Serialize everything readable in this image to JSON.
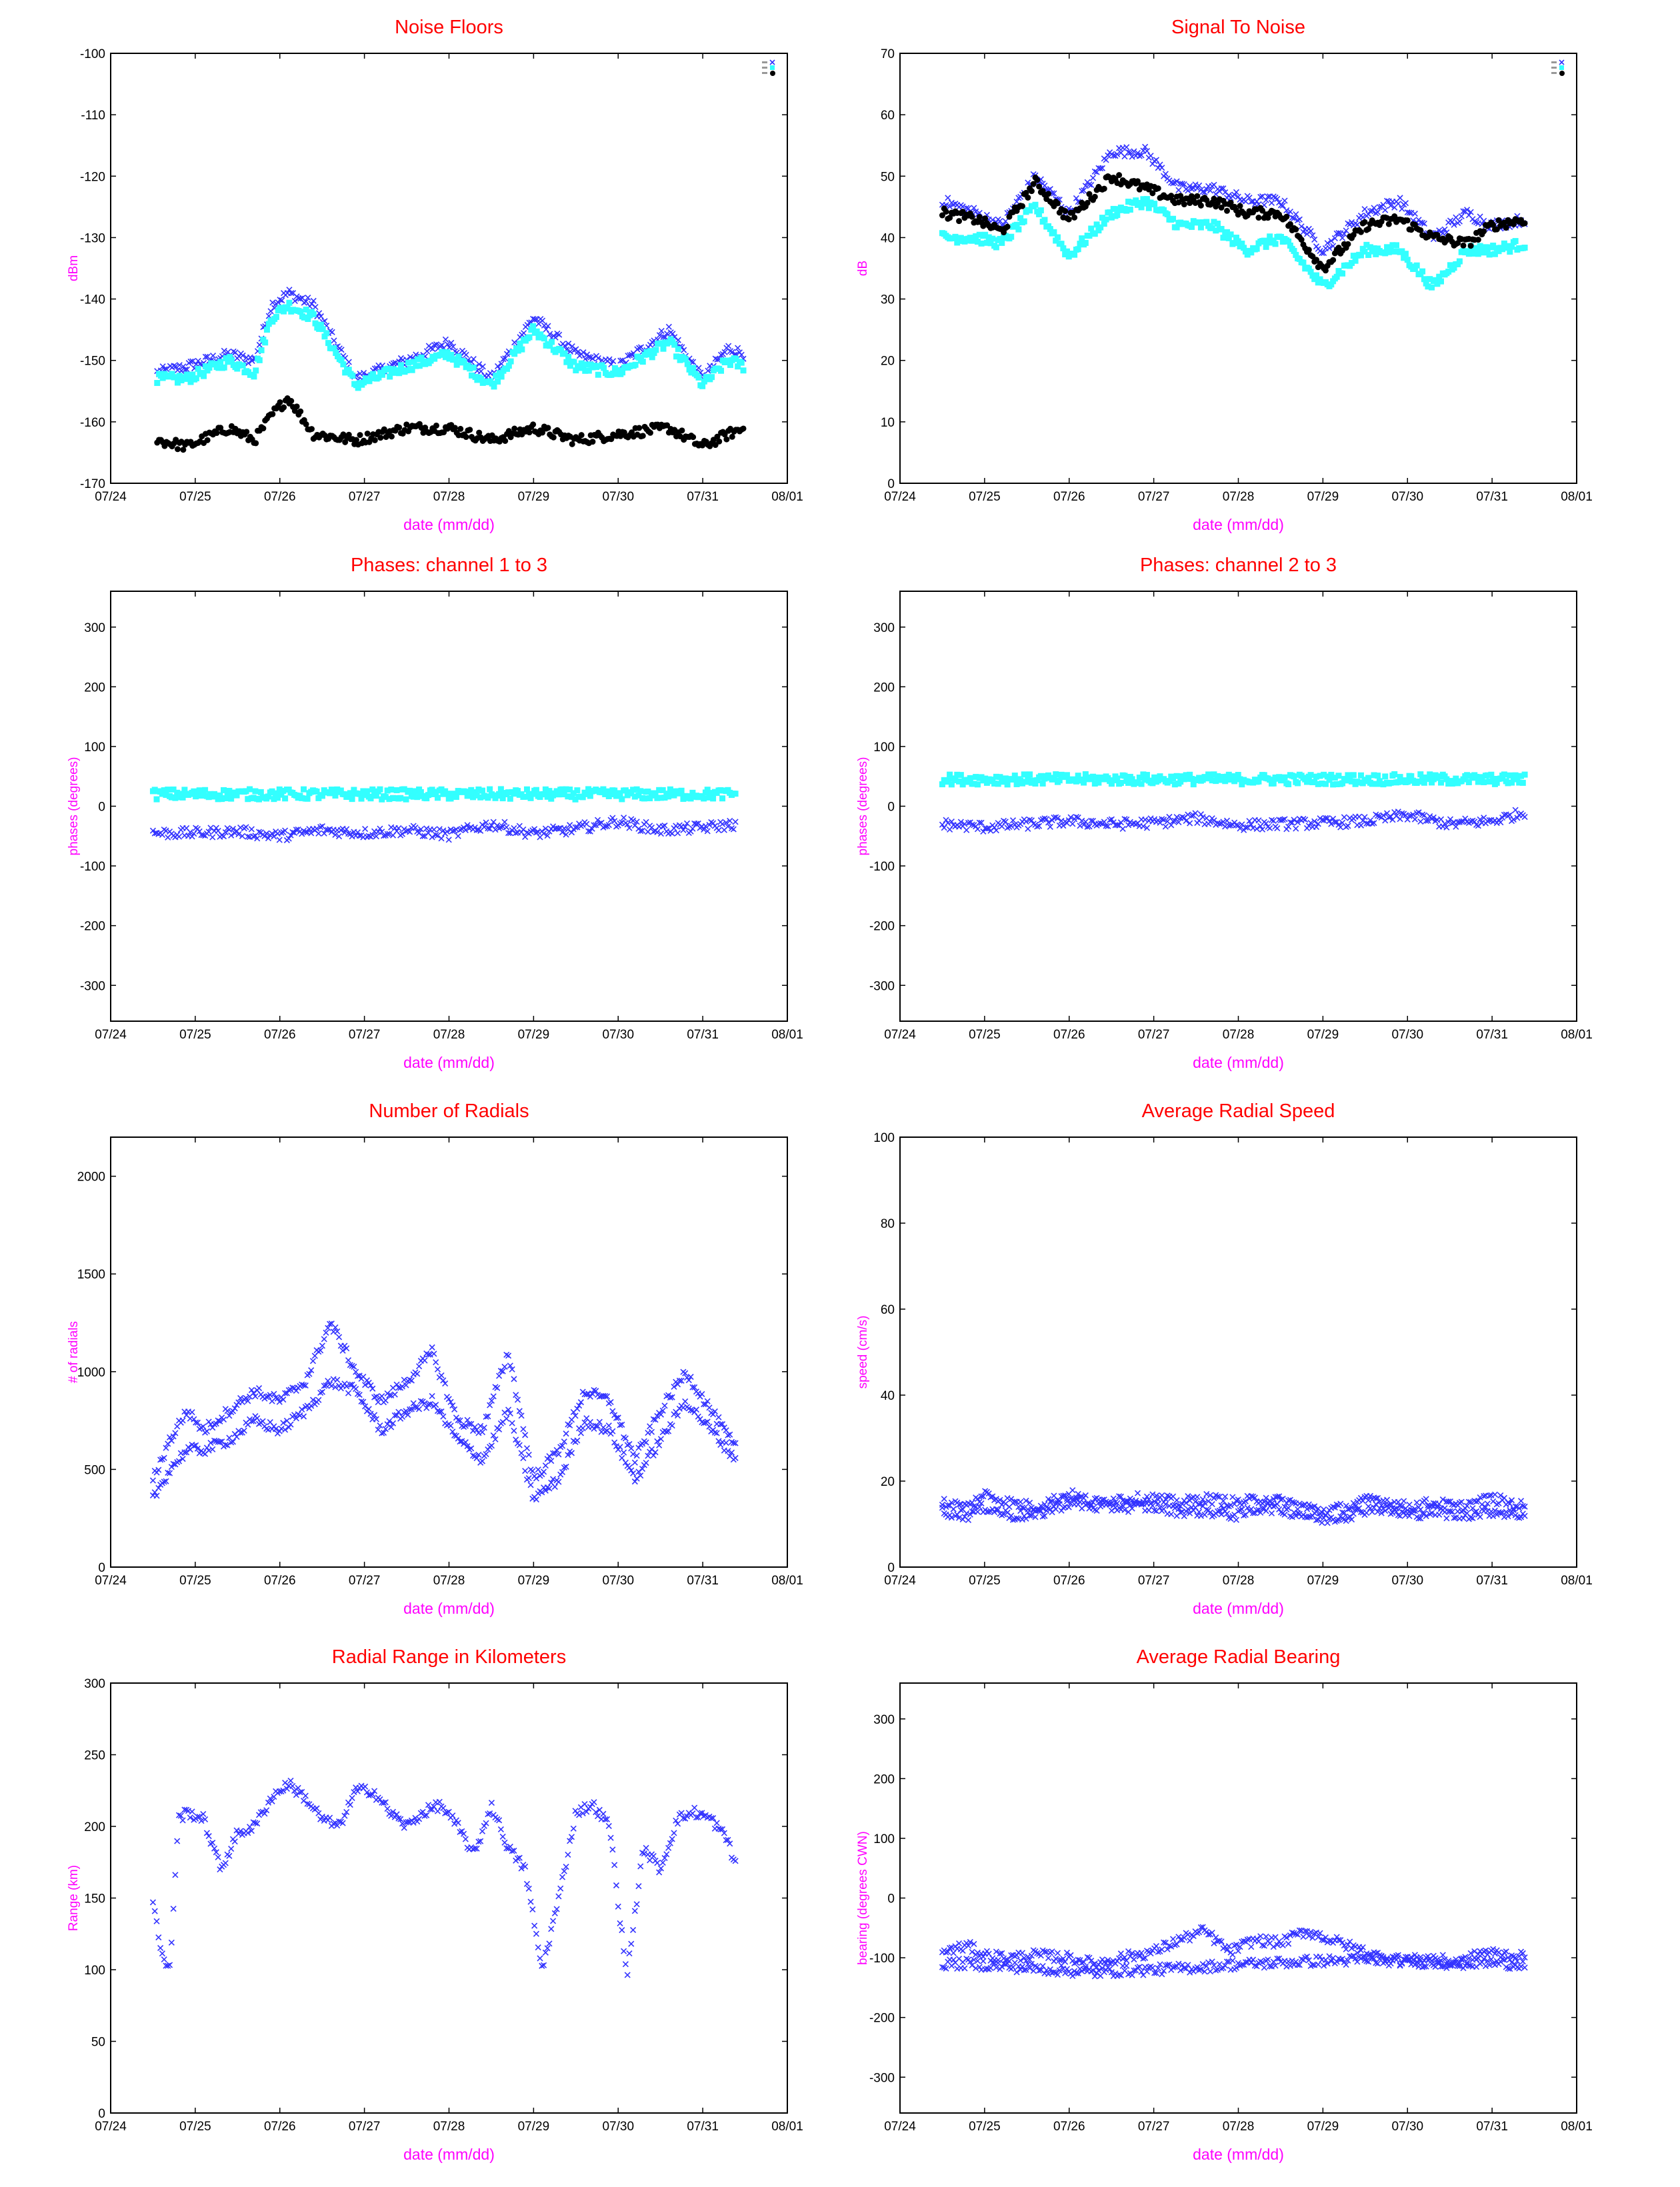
{
  "colors": {
    "title": "#ff0000",
    "axis_label": "#ff00ff",
    "blue": "#3333ff",
    "cyan": "#33ffff",
    "black": "#000000",
    "frame": "#000000"
  },
  "chart_data": [
    {
      "type": "scatter",
      "title": "Noise Floors",
      "xlabel": "date (mm/dd)",
      "ylabel": "dBm",
      "x_ticks": [
        "07/24",
        "07/25",
        "07/26",
        "07/27",
        "07/28",
        "07/29",
        "07/30",
        "07/31",
        "08/01"
      ],
      "xlim": [
        0,
        8
      ],
      "ylim": [
        -170,
        -100
      ],
      "y_ticks": [
        -100,
        -110,
        -120,
        -130,
        -140,
        -150,
        -160,
        -170
      ],
      "grid": false,
      "legend": "top-right",
      "legend_labels": [
        "",
        "",
        ""
      ],
      "series": [
        {
          "color": "#3333ff",
          "marker": "x",
          "x": [
            0.55,
            0.9,
            1.4,
            1.7,
            1.9,
            2.1,
            2.4,
            2.9,
            3.5,
            4.0,
            4.5,
            5.0,
            5.5,
            6.0,
            6.6,
            7.0,
            7.3,
            7.5
          ],
          "y": [
            -152,
            -151,
            -149,
            -150,
            -141,
            -139,
            -141,
            -153,
            -150,
            -147,
            -153,
            -143,
            -149,
            -151,
            -145,
            -153,
            -148,
            -149
          ]
        },
        {
          "color": "#33ffff",
          "marker": "s",
          "x": [
            0.55,
            0.9,
            1.4,
            1.7,
            1.9,
            2.1,
            2.4,
            2.9,
            3.5,
            4.0,
            4.5,
            5.0,
            5.5,
            6.0,
            6.6,
            7.0,
            7.3,
            7.5
          ],
          "y": [
            -153,
            -153,
            -150,
            -152,
            -143,
            -141,
            -143,
            -154,
            -151,
            -149,
            -154,
            -145,
            -151,
            -152,
            -147,
            -154,
            -150,
            -151
          ]
        },
        {
          "color": "#000000",
          "marker": "o",
          "x": [
            0.55,
            0.9,
            1.4,
            1.7,
            1.9,
            2.1,
            2.4,
            2.9,
            3.5,
            4.0,
            4.5,
            5.0,
            5.5,
            6.0,
            6.6,
            7.0,
            7.3,
            7.5
          ],
          "y": [
            -163,
            -164,
            -161,
            -163,
            -159,
            -156,
            -162,
            -163,
            -161,
            -161,
            -163,
            -161,
            -163,
            -162,
            -161,
            -164,
            -162,
            -161
          ]
        }
      ]
    },
    {
      "type": "scatter",
      "title": "Signal To Noise",
      "xlabel": "date (mm/dd)",
      "ylabel": "dB",
      "x_ticks": [
        "07/24",
        "07/25",
        "07/26",
        "07/27",
        "07/28",
        "07/29",
        "07/30",
        "07/31",
        "08/01"
      ],
      "xlim": [
        0,
        8
      ],
      "ylim": [
        0,
        70
      ],
      "y_ticks": [
        70,
        60,
        50,
        40,
        30,
        20,
        10,
        0
      ],
      "grid": false,
      "legend": "top-right",
      "legend_labels": [
        "",
        "",
        ""
      ],
      "series": [
        {
          "color": "#3333ff",
          "marker": "x",
          "x": [
            0.5,
            0.9,
            1.2,
            1.6,
            2.0,
            2.5,
            2.9,
            3.3,
            3.7,
            4.1,
            4.5,
            5.0,
            5.5,
            5.9,
            6.3,
            6.7,
            7.0,
            7.4
          ],
          "y": [
            46,
            44,
            42,
            50,
            44,
            54,
            54,
            48,
            48,
            46,
            46,
            38,
            44,
            46,
            40,
            44,
            42,
            43
          ]
        },
        {
          "color": "#33ffff",
          "marker": "s",
          "x": [
            0.5,
            0.9,
            1.2,
            1.6,
            2.0,
            2.5,
            2.9,
            3.3,
            3.7,
            4.1,
            4.5,
            5.0,
            5.5,
            5.9,
            6.3,
            6.7,
            7.0,
            7.4
          ],
          "y": [
            40,
            40,
            39,
            45,
            37,
            44,
            46,
            42,
            42,
            38,
            40,
            32,
            38,
            38,
            32,
            38,
            38,
            39
          ]
        },
        {
          "color": "#000000",
          "marker": "o",
          "x": [
            0.5,
            0.9,
            1.2,
            1.6,
            2.0,
            2.5,
            2.9,
            3.3,
            3.7,
            4.1,
            4.5,
            5.0,
            5.5,
            5.9,
            6.3,
            6.7,
            7.0,
            7.4
          ],
          "y": [
            44,
            43,
            41,
            49,
            43,
            50,
            48,
            46,
            46,
            44,
            44,
            35,
            42,
            43,
            40,
            39,
            42,
            43
          ]
        }
      ]
    },
    {
      "type": "scatter",
      "title": "Phases: channel 1 to 3",
      "xlabel": "date (mm/dd)",
      "ylabel": "phases (degrees)",
      "x_ticks": [
        "07/24",
        "07/25",
        "07/26",
        "07/27",
        "07/28",
        "07/29",
        "07/30",
        "07/31",
        "08/01"
      ],
      "xlim": [
        0,
        8
      ],
      "ylim": [
        -360,
        360
      ],
      "y_ticks": [
        300,
        200,
        100,
        0,
        -100,
        -200,
        -300
      ],
      "grid": false,
      "series": [
        {
          "color": "#3333ff",
          "marker": "x",
          "x": [
            0.5,
            1.0,
            1.5,
            2.0,
            2.5,
            3.0,
            3.5,
            4.0,
            4.5,
            5.0,
            5.5,
            6.0,
            6.5,
            7.0,
            7.4
          ],
          "y": [
            -45,
            -45,
            -42,
            -50,
            -40,
            -45,
            -40,
            -48,
            -30,
            -46,
            -38,
            -25,
            -40,
            -36,
            -30
          ]
        },
        {
          "color": "#33ffff",
          "marker": "s",
          "x": [
            0.5,
            1.0,
            2.0,
            3.0,
            4.0,
            5.0,
            6.0,
            7.0,
            7.4
          ],
          "y": [
            20,
            20,
            20,
            20,
            20,
            20,
            20,
            20,
            20
          ]
        }
      ]
    },
    {
      "type": "scatter",
      "title": "Phases: channel 2 to 3",
      "xlabel": "date (mm/dd)",
      "ylabel": "phases (degrees)",
      "x_ticks": [
        "07/24",
        "07/25",
        "07/26",
        "07/27",
        "07/28",
        "07/29",
        "07/30",
        "07/31",
        "08/01"
      ],
      "xlim": [
        0,
        8
      ],
      "ylim": [
        -360,
        360
      ],
      "y_ticks": [
        300,
        200,
        100,
        0,
        -100,
        -200,
        -300
      ],
      "grid": false,
      "series": [
        {
          "color": "#3333ff",
          "marker": "x",
          "x": [
            0.5,
            1.0,
            1.5,
            2.0,
            2.5,
            3.0,
            3.5,
            4.0,
            4.5,
            5.0,
            5.5,
            6.0,
            6.5,
            7.0,
            7.4
          ],
          "y": [
            -30,
            -35,
            -30,
            -25,
            -30,
            -28,
            -20,
            -32,
            -30,
            -28,
            -25,
            -15,
            -30,
            -25,
            -10
          ]
        },
        {
          "color": "#33ffff",
          "marker": "s",
          "x": [
            0.5,
            1.0,
            2.0,
            3.0,
            4.0,
            5.0,
            6.0,
            7.0,
            7.4
          ],
          "y": [
            45,
            45,
            45,
            45,
            45,
            45,
            45,
            45,
            45
          ]
        }
      ]
    },
    {
      "type": "scatter",
      "title": "Number of Radials",
      "xlabel": "date (mm/dd)",
      "ylabel": "# of radials",
      "x_ticks": [
        "07/24",
        "07/25",
        "07/26",
        "07/27",
        "07/28",
        "07/29",
        "07/30",
        "07/31",
        "08/01"
      ],
      "xlim": [
        0,
        8
      ],
      "ylim": [
        0,
        2200
      ],
      "y_ticks": [
        2000,
        1500,
        1000,
        500,
        0
      ],
      "grid": false,
      "series": [
        {
          "color": "#3333ff",
          "marker": "x",
          "x": [
            0.5,
            0.7,
            0.9,
            1.1,
            1.4,
            1.7,
            2.0,
            2.3,
            2.6,
            2.9,
            3.2,
            3.5,
            3.8,
            4.1,
            4.4,
            4.7,
            5.0,
            5.3,
            5.6,
            5.9,
            6.2,
            6.5,
            6.8,
            7.1,
            7.4
          ],
          "y": [
            450,
            650,
            800,
            700,
            800,
            900,
            850,
            950,
            1250,
            1000,
            850,
            950,
            1100,
            750,
            700,
            1100,
            450,
            600,
            900,
            850,
            550,
            800,
            1000,
            800,
            600
          ]
        },
        {
          "color": "#3333ff",
          "marker": "x",
          "x": [
            0.5,
            0.7,
            0.9,
            1.1,
            1.4,
            1.7,
            2.0,
            2.3,
            2.6,
            2.9,
            3.2,
            3.5,
            3.8,
            4.1,
            4.4,
            4.7,
            5.0,
            5.3,
            5.6,
            5.9,
            6.2,
            6.5,
            6.8,
            7.1,
            7.4
          ],
          "y": [
            350,
            500,
            600,
            600,
            650,
            750,
            700,
            800,
            950,
            900,
            700,
            800,
            850,
            650,
            550,
            800,
            350,
            450,
            750,
            700,
            450,
            650,
            850,
            700,
            550
          ]
        }
      ]
    },
    {
      "type": "scatter",
      "title": "Average Radial Speed",
      "xlabel": "date (mm/dd)",
      "ylabel": "speed (cm/s)",
      "x_ticks": [
        "07/24",
        "07/25",
        "07/26",
        "07/27",
        "07/28",
        "07/29",
        "07/30",
        "07/31",
        "08/01"
      ],
      "xlim": [
        0,
        8
      ],
      "ylim": [
        0,
        100
      ],
      "y_ticks": [
        100,
        80,
        60,
        40,
        20,
        0
      ],
      "grid": false,
      "series": [
        {
          "color": "#3333ff",
          "marker": "x",
          "x": [
            0.5,
            0.8,
            1.0,
            1.3,
            1.6,
            2.0,
            2.3,
            2.6,
            3.0,
            3.3,
            3.6,
            4.0,
            4.3,
            4.6,
            5.0,
            5.3,
            5.6,
            6.0,
            6.3,
            6.6,
            7.0,
            7.4
          ],
          "y": [
            15,
            14,
            17,
            15,
            14,
            17,
            15,
            16,
            16,
            15,
            16,
            15,
            16,
            15,
            13,
            14,
            16,
            14,
            15,
            14,
            16,
            14
          ]
        },
        {
          "color": "#3333ff",
          "marker": "x",
          "x": [
            0.5,
            0.8,
            1.0,
            1.3,
            1.6,
            2.0,
            2.3,
            2.6,
            3.0,
            3.3,
            3.6,
            4.0,
            4.3,
            4.6,
            5.0,
            5.3,
            5.6,
            6.0,
            6.3,
            6.6,
            7.0,
            7.4
          ],
          "y": [
            13,
            12,
            14,
            12,
            12,
            15,
            14,
            14,
            14,
            13,
            13,
            12,
            14,
            13,
            11,
            12,
            14,
            12,
            13,
            12,
            13,
            12
          ]
        }
      ]
    },
    {
      "type": "scatter",
      "title": "Radial Range in Kilometers",
      "xlabel": "date (mm/dd)",
      "ylabel": "Range (km)",
      "x_ticks": [
        "07/24",
        "07/25",
        "07/26",
        "07/27",
        "07/28",
        "07/29",
        "07/30",
        "07/31",
        "08/01"
      ],
      "xlim": [
        0,
        8
      ],
      "ylim": [
        0,
        300
      ],
      "y_ticks": [
        300,
        250,
        200,
        150,
        100,
        50,
        0
      ],
      "grid": false,
      "series": [
        {
          "color": "#3333ff",
          "marker": "x",
          "x": [
            0.5,
            0.6,
            0.7,
            0.8,
            0.9,
            1.1,
            1.3,
            1.5,
            1.7,
            1.9,
            2.1,
            2.3,
            2.5,
            2.7,
            2.9,
            3.1,
            3.3,
            3.5,
            3.7,
            3.9,
            4.1,
            4.3,
            4.5,
            4.7,
            4.9,
            5.1,
            5.3,
            5.5,
            5.7,
            5.9,
            6.1,
            6.3,
            6.5,
            6.7,
            6.9,
            7.1,
            7.3,
            7.4
          ],
          "y": [
            150,
            110,
            100,
            205,
            210,
            205,
            170,
            195,
            200,
            220,
            230,
            220,
            205,
            200,
            225,
            225,
            210,
            200,
            210,
            215,
            200,
            180,
            215,
            185,
            170,
            100,
            150,
            210,
            215,
            200,
            95,
            185,
            170,
            205,
            210,
            205,
            190,
            170
          ]
        }
      ]
    },
    {
      "type": "scatter",
      "title": "Average Radial Bearing",
      "xlabel": "date (mm/dd)",
      "ylabel": "bearing (degrees CWN)",
      "x_ticks": [
        "07/24",
        "07/25",
        "07/26",
        "07/27",
        "07/28",
        "07/29",
        "07/30",
        "07/31",
        "08/01"
      ],
      "xlim": [
        0,
        8
      ],
      "ylim": [
        -360,
        360
      ],
      "y_ticks": [
        300,
        200,
        100,
        0,
        -100,
        -200,
        -300
      ],
      "grid": false,
      "series": [
        {
          "color": "#3333ff",
          "marker": "x",
          "x": [
            0.5,
            0.8,
            1.0,
            1.3,
            1.6,
            2.0,
            2.3,
            2.6,
            3.0,
            3.3,
            3.6,
            3.9,
            4.2,
            4.5,
            4.8,
            5.1,
            5.4,
            5.7,
            6.0,
            6.3,
            6.6,
            6.9,
            7.2,
            7.4
          ],
          "y": [
            -90,
            -80,
            -95,
            -100,
            -95,
            -100,
            -110,
            -100,
            -90,
            -70,
            -55,
            -90,
            -70,
            -75,
            -55,
            -70,
            -85,
            -100,
            -105,
            -100,
            -110,
            -90,
            -95,
            -100
          ]
        },
        {
          "color": "#3333ff",
          "marker": "x",
          "x": [
            0.5,
            0.8,
            1.0,
            1.3,
            1.6,
            2.0,
            2.3,
            2.6,
            3.0,
            3.3,
            3.6,
            3.9,
            4.2,
            4.5,
            4.8,
            5.1,
            5.4,
            5.7,
            6.0,
            6.3,
            6.6,
            6.9,
            7.2,
            7.4
          ],
          "y": [
            -110,
            -110,
            -112,
            -115,
            -118,
            -122,
            -125,
            -122,
            -120,
            -118,
            -115,
            -112,
            -110,
            -108,
            -106,
            -105,
            -104,
            -104,
            -106,
            -108,
            -110,
            -108,
            -110,
            -110
          ]
        }
      ]
    }
  ]
}
